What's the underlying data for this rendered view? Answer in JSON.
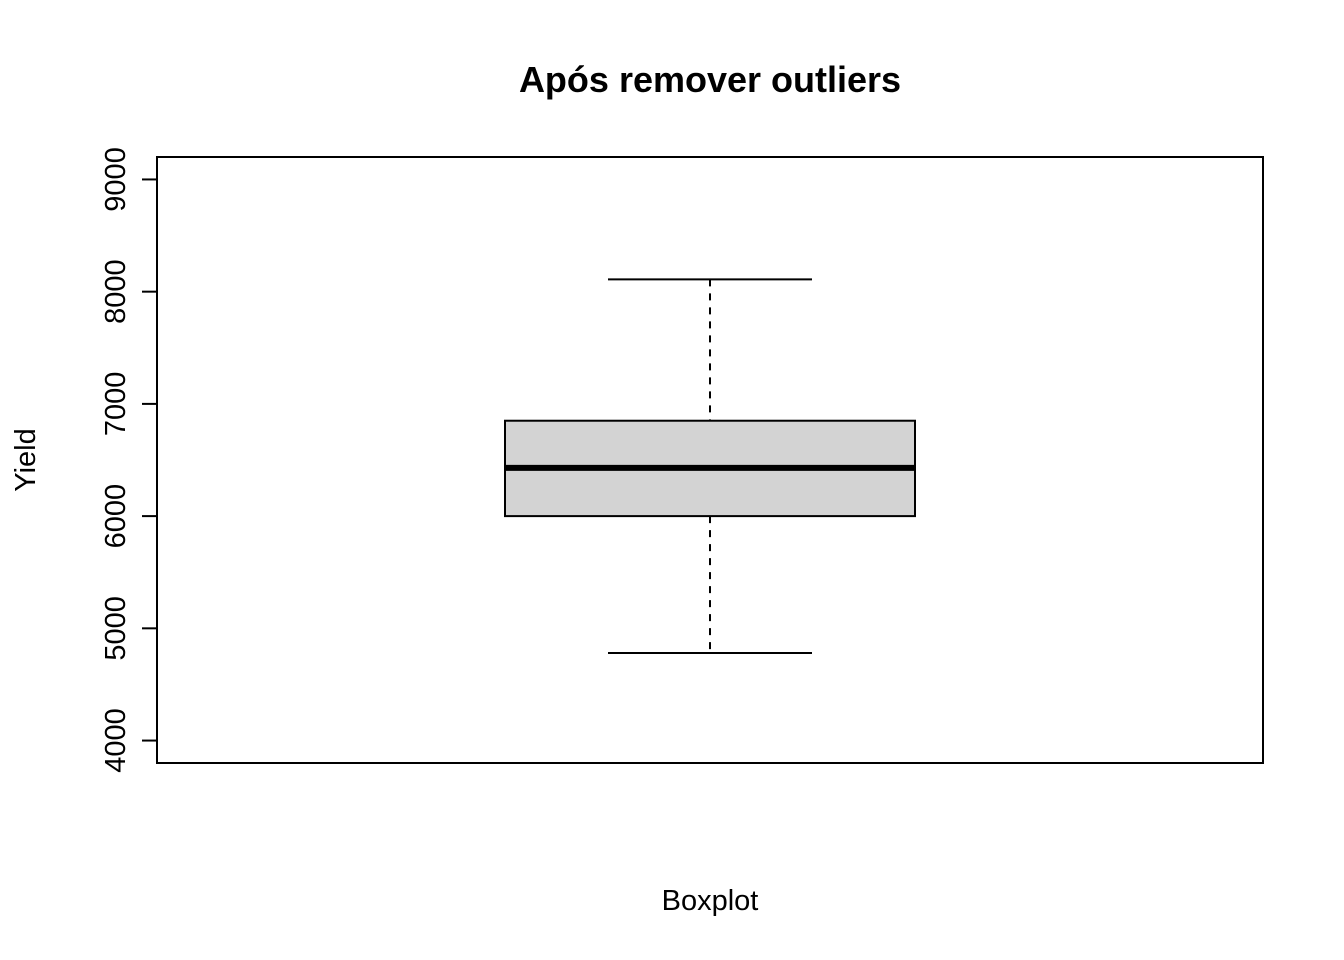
{
  "chart_data": {
    "type": "boxplot",
    "title": "Após remover outliers",
    "xlabel": "Boxplot",
    "ylabel": "Yield",
    "ylim": [
      3800,
      9200
    ],
    "yticks": [
      4000,
      5000,
      6000,
      7000,
      8000,
      9000
    ],
    "grid": false,
    "legend": "none",
    "box": {
      "whisker_low": 4780,
      "q1": 6000,
      "median": 6430,
      "q3": 6850,
      "whisker_high": 8110
    },
    "colors": {
      "box_fill": "#d3d3d3",
      "stroke": "#000000",
      "background": "#ffffff"
    }
  }
}
